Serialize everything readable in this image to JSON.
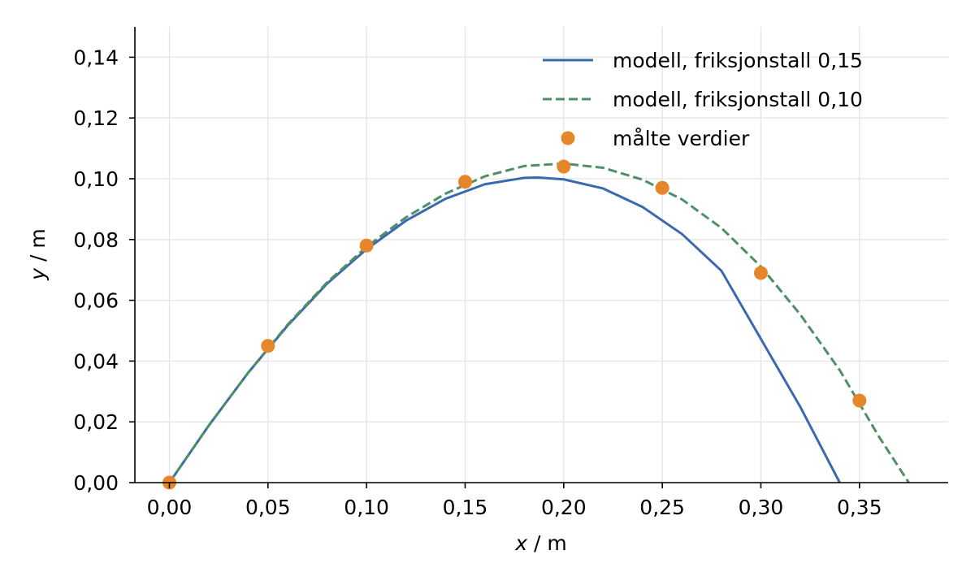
{
  "chart_data": {
    "type": "line",
    "title": "",
    "xlabel_var": "x",
    "xlabel_unit": " / m",
    "ylabel_var": "y",
    "ylabel_unit": " / m",
    "xlim": [
      -0.0175,
      0.395
    ],
    "ylim": [
      0,
      0.15
    ],
    "xticks": [
      0,
      0.05,
      0.1,
      0.15,
      0.2,
      0.25,
      0.3,
      0.35
    ],
    "xtick_labels": [
      "0,00",
      "0,05",
      "0,10",
      "0,15",
      "0,20",
      "0,25",
      "0,30",
      "0,35"
    ],
    "yticks": [
      0,
      0.02,
      0.04,
      0.06,
      0.08,
      0.1,
      0.12,
      0.14
    ],
    "ytick_labels": [
      "0,00",
      "0,02",
      "0,04",
      "0,06",
      "0,08",
      "0,10",
      "0,12",
      "0,14"
    ],
    "grid": true,
    "legend_position": "top-right",
    "series": [
      {
        "name": "modell, friksjonstall 0,15",
        "style": "solid",
        "color": "#3a6aad",
        "x": [
          0,
          0.02,
          0.04,
          0.06,
          0.08,
          0.1,
          0.12,
          0.14,
          0.16,
          0.18,
          0.187,
          0.2,
          0.22,
          0.24,
          0.26,
          0.28,
          0.3,
          0.32,
          0.34
        ],
        "y": [
          0,
          0.0188,
          0.0362,
          0.0517,
          0.0655,
          0.0768,
          0.0862,
          0.0934,
          0.0982,
          0.1003,
          0.1004,
          0.0998,
          0.0968,
          0.0907,
          0.0818,
          0.0697,
          0.0473,
          0.0249,
          0.0
        ]
      },
      {
        "name": "modell, friksjonstall 0,10",
        "style": "dashed",
        "color": "#4f8f66",
        "x": [
          0,
          0.02,
          0.04,
          0.06,
          0.08,
          0.1,
          0.12,
          0.14,
          0.16,
          0.18,
          0.2,
          0.22,
          0.24,
          0.26,
          0.28,
          0.3,
          0.32,
          0.34,
          0.36,
          0.375
        ],
        "y": [
          0,
          0.0188,
          0.0362,
          0.052,
          0.0659,
          0.0776,
          0.0873,
          0.0951,
          0.1008,
          0.1042,
          0.105,
          0.1036,
          0.0997,
          0.0932,
          0.0838,
          0.0711,
          0.0553,
          0.037,
          0.015,
          0.0
        ]
      },
      {
        "name": "målte verdier",
        "style": "points",
        "color": "#e6862a",
        "x": [
          0,
          0.05,
          0.1,
          0.15,
          0.2,
          0.25,
          0.3,
          0.35
        ],
        "y": [
          0,
          0.045,
          0.078,
          0.099,
          0.104,
          0.097,
          0.069,
          0.027
        ]
      }
    ]
  }
}
